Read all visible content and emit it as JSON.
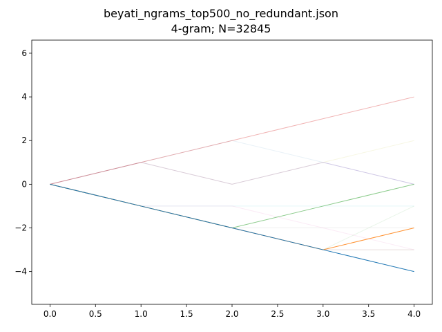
{
  "chart_data": {
    "type": "line",
    "title_line1": "beyati_ngrams_top500_no_redundant.json",
    "title_line2": "4-gram; N=32845",
    "xlim": [
      -0.2,
      4.2
    ],
    "ylim": [
      -5.5,
      6.6
    ],
    "grid": false,
    "xticks": [
      "0.0",
      "0.5",
      "1.0",
      "1.5",
      "2.0",
      "2.5",
      "3.0",
      "3.5",
      "4.0"
    ],
    "yticks": [
      "−4",
      "−2",
      "0",
      "2",
      "4",
      "6"
    ],
    "xtick_values": [
      0,
      0.5,
      1,
      1.5,
      2,
      2.5,
      3,
      3.5,
      4
    ],
    "ytick_values": [
      -4,
      -2,
      0,
      2,
      4,
      6
    ],
    "series": [
      {
        "x": [
          0,
          1,
          2,
          3,
          4
        ],
        "y": [
          0,
          -1,
          -2,
          -3,
          -4
        ],
        "color": "#1f77b4",
        "opacity": 1.0
      },
      {
        "x": [
          0,
          1,
          2,
          3,
          4
        ],
        "y": [
          0,
          -1,
          -2,
          -3,
          -2
        ],
        "color": "#ff7f0e",
        "opacity": 0.85
      },
      {
        "x": [
          0,
          1,
          2,
          3,
          4
        ],
        "y": [
          0,
          -1,
          -2,
          -1,
          0
        ],
        "color": "#2ca02c",
        "opacity": 0.55
      },
      {
        "x": [
          0,
          1,
          2,
          3,
          4
        ],
        "y": [
          0,
          1,
          2,
          3,
          4
        ],
        "color": "#d62728",
        "opacity": 0.35
      },
      {
        "x": [
          0,
          1,
          2,
          3,
          4
        ],
        "y": [
          0,
          1,
          0,
          1,
          0
        ],
        "color": "#9467bd",
        "opacity": 0.3
      },
      {
        "x": [
          0,
          1,
          2,
          3,
          4
        ],
        "y": [
          0,
          -1,
          -2,
          -3,
          -3
        ],
        "color": "#8c564b",
        "opacity": 0.2
      },
      {
        "x": [
          0,
          1,
          2,
          3,
          4
        ],
        "y": [
          0,
          -1,
          -1,
          -2,
          -3
        ],
        "color": "#e377c2",
        "opacity": 0.15
      },
      {
        "x": [
          0,
          1,
          2,
          3,
          4
        ],
        "y": [
          0,
          -1,
          -2,
          -2,
          -2
        ],
        "color": "#7f7f7f",
        "opacity": 0.12
      },
      {
        "x": [
          0,
          1,
          2,
          3,
          4
        ],
        "y": [
          0,
          1,
          0,
          1,
          2
        ],
        "color": "#bcbd22",
        "opacity": 0.12
      },
      {
        "x": [
          0,
          1,
          2,
          3,
          4
        ],
        "y": [
          0,
          -1,
          -1,
          -1,
          -1
        ],
        "color": "#17becf",
        "opacity": 0.12
      },
      {
        "x": [
          0,
          1,
          2,
          3,
          4
        ],
        "y": [
          0,
          1,
          2,
          1,
          0
        ],
        "color": "#1f77b4",
        "opacity": 0.1
      },
      {
        "x": [
          0,
          1,
          2,
          3,
          4
        ],
        "y": [
          0,
          -1,
          -2,
          -3,
          -1
        ],
        "color": "#2ca02c",
        "opacity": 0.1
      }
    ]
  }
}
